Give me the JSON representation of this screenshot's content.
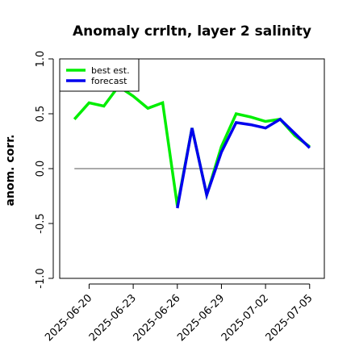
{
  "chart_data": {
    "type": "line",
    "title": "Anomaly crrltn, layer 2 salinity",
    "xlabel": "",
    "ylabel": "anom. corr.",
    "ylim": [
      -1.0,
      1.0
    ],
    "yticks": [
      -1.0,
      -0.5,
      0.0,
      0.5,
      1.0
    ],
    "ytick_labels": [
      "-1.0",
      "-0.5",
      "0.0",
      "0.5",
      "1.0"
    ],
    "x_dates": [
      "2025-06-19",
      "2025-06-20",
      "2025-06-21",
      "2025-06-22",
      "2025-06-23",
      "2025-06-24",
      "2025-06-25",
      "2025-06-26",
      "2025-06-27",
      "2025-06-28",
      "2025-06-29",
      "2025-06-30",
      "2025-07-01",
      "2025-07-02",
      "2025-07-03",
      "2025-07-04",
      "2025-07-05"
    ],
    "xticks": [
      "2025-06-20",
      "2025-06-23",
      "2025-06-26",
      "2025-06-29",
      "2025-07-02",
      "2025-07-05"
    ],
    "highlight_tick": "2025-06-26",
    "highlight_color": "#228b22",
    "xlim": [
      "2025-06-18",
      "2025-07-06"
    ],
    "reference_line": 0.0,
    "grid": false,
    "legend_position": "top-left",
    "series": [
      {
        "name": "best est.",
        "color": "#00ee00",
        "values": [
          0.45,
          0.6,
          0.57,
          0.75,
          0.66,
          0.55,
          0.6,
          -0.34,
          0.37,
          -0.24,
          0.2,
          0.5,
          0.47,
          0.43,
          0.45,
          0.3,
          0.2
        ]
      },
      {
        "name": "forecast",
        "color": "#0000ee",
        "values": [
          null,
          null,
          null,
          null,
          null,
          null,
          null,
          -0.36,
          0.37,
          -0.24,
          0.15,
          0.42,
          0.4,
          0.37,
          0.45,
          0.32,
          0.19
        ]
      }
    ]
  }
}
